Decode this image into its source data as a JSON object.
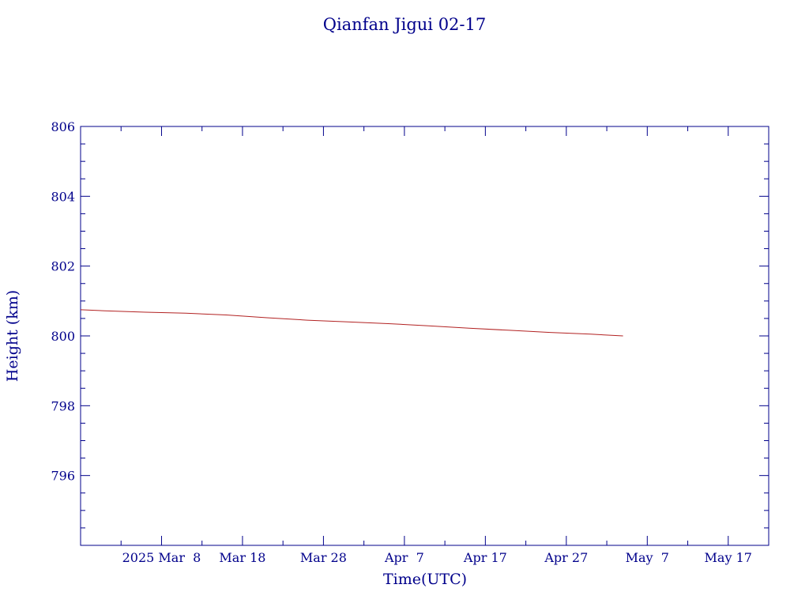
{
  "chart_data": {
    "type": "line",
    "title": "Qianfan Jigui 02-17",
    "xlabel": "Time(UTC)",
    "ylabel": "Height (km)",
    "x_axis": {
      "start": "2025-02-26",
      "end": "2025-05-22",
      "major_ticks": [
        {
          "date": "2025-02-26",
          "label": ""
        },
        {
          "date": "2025-03-08",
          "label": "2025 Mar  8"
        },
        {
          "date": "2025-03-18",
          "label": "Mar 18"
        },
        {
          "date": "2025-03-28",
          "label": "Mar 28"
        },
        {
          "date": "2025-04-07",
          "label": "Apr  7"
        },
        {
          "date": "2025-04-17",
          "label": "Apr 17"
        },
        {
          "date": "2025-04-27",
          "label": "Apr 27"
        },
        {
          "date": "2025-05-07",
          "label": "May  7"
        },
        {
          "date": "2025-05-17",
          "label": "May 17"
        }
      ],
      "minor_tick_step_days": 5
    },
    "y_axis": {
      "min": 794,
      "max": 806,
      "major_ticks": [
        796,
        798,
        800,
        802,
        804,
        806
      ],
      "minor_tick_step": 0.5
    },
    "grid": false,
    "series": [
      {
        "color": "#b22222",
        "points": [
          {
            "x": "2025-02-26",
            "y": 800.75
          },
          {
            "x": "2025-03-01",
            "y": 800.72
          },
          {
            "x": "2025-03-06",
            "y": 800.68
          },
          {
            "x": "2025-03-11",
            "y": 800.65
          },
          {
            "x": "2025-03-16",
            "y": 800.6
          },
          {
            "x": "2025-03-21",
            "y": 800.52
          },
          {
            "x": "2025-03-26",
            "y": 800.45
          },
          {
            "x": "2025-03-31",
            "y": 800.4
          },
          {
            "x": "2025-04-05",
            "y": 800.35
          },
          {
            "x": "2025-04-10",
            "y": 800.29
          },
          {
            "x": "2025-04-15",
            "y": 800.22
          },
          {
            "x": "2025-04-20",
            "y": 800.16
          },
          {
            "x": "2025-04-25",
            "y": 800.1
          },
          {
            "x": "2025-04-30",
            "y": 800.05
          },
          {
            "x": "2025-05-04",
            "y": 800.0
          }
        ]
      }
    ],
    "colors": {
      "axis": "#00008b",
      "text": "#00008b"
    }
  }
}
